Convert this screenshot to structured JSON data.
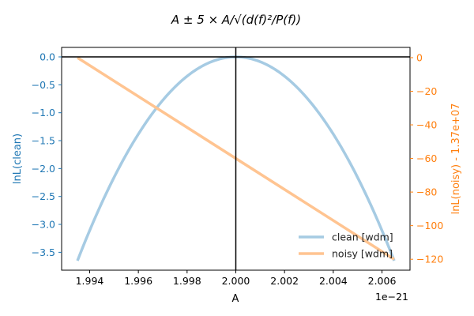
{
  "chart_data": {
    "type": "line",
    "title": "A ± 5 × A/√(d(f)²/P(f))",
    "xlabel": "A",
    "x_offset_text": "1e−21",
    "x_ticks": [
      "1.994",
      "1.996",
      "1.998",
      "2.000",
      "2.002",
      "2.004",
      "2.006"
    ],
    "x_tick_values": [
      1.994,
      1.996,
      1.998,
      2.0,
      2.002,
      2.004,
      2.006
    ],
    "xlim": [
      1.99285,
      2.00715
    ],
    "y_left": {
      "label": "lnL(clean)",
      "color": "#1f77b4",
      "ylim": [
        -3.82,
        0.17
      ],
      "ticks": [
        "0.0",
        "−0.5",
        "−1.0",
        "−1.5",
        "−2.0",
        "−2.5",
        "−3.0",
        "−3.5"
      ],
      "tick_values": [
        0.0,
        -0.5,
        -1.0,
        -1.5,
        -2.0,
        -2.5,
        -3.0,
        -3.5
      ]
    },
    "y_right": {
      "label": "lnL(noisy) - 1.37e+07",
      "color": "#ff7f0e",
      "ylim": [
        -126.5,
        6.1
      ],
      "ticks": [
        "0",
        "−20",
        "−40",
        "−60",
        "−80",
        "−100",
        "−120"
      ],
      "tick_values": [
        0,
        -20,
        -40,
        -60,
        -80,
        -100,
        -120
      ]
    },
    "reference_lines": {
      "vertical_x": 2.0,
      "horizontal_y_left": 0.0,
      "color": "#000000"
    },
    "series": [
      {
        "name": "clean [wdm]",
        "axis": "left",
        "color": "#a6cbe3",
        "x": [
          1.9935,
          1.9945,
          1.9955,
          1.9965,
          1.9975,
          1.9985,
          1.9995,
          2.0,
          2.0005,
          2.0015,
          2.0025,
          2.0035,
          2.0045,
          2.0055,
          2.0065
        ],
        "y": [
          -3.65,
          -2.66,
          -1.83,
          -1.13,
          -0.58,
          -0.21,
          -0.02,
          0.0,
          -0.02,
          -0.21,
          -0.58,
          -1.13,
          -1.83,
          -2.66,
          -3.65
        ]
      },
      {
        "name": "noisy [wdm]",
        "axis": "right",
        "color": "#ffc491",
        "x": [
          1.9935,
          2.0065
        ],
        "y": [
          0,
          -120
        ]
      }
    ],
    "legend": {
      "position": "lower-right"
    }
  }
}
